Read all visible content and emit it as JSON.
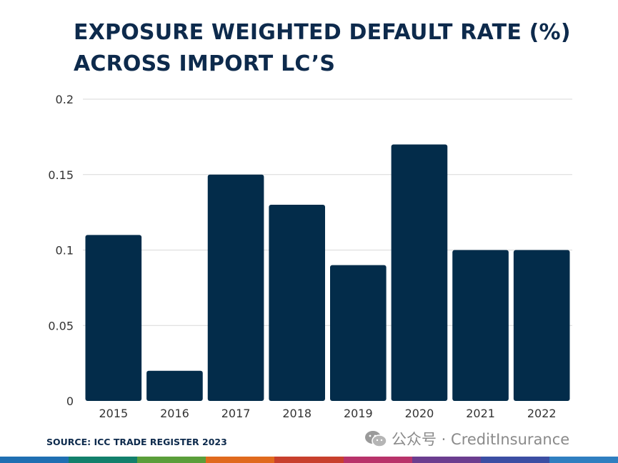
{
  "title_lines": [
    "EXPOSURE WEIGHTED DEFAULT RATE (%)",
    "ACROSS IMPORT LC’S"
  ],
  "source": "SOURCE: ICC TRADE REGISTER 2023",
  "watermark": {
    "text": "公众号 · CreditInsurance",
    "icon": "wechat-icon"
  },
  "colors": {
    "title": "#0d2a4c",
    "bar": "#032c4a",
    "grid": "#d9d9d9",
    "axis_text": "#333333",
    "stripes": [
      "#1f6fb2",
      "#12806c",
      "#5a9e3a",
      "#e06a1e",
      "#c8402d",
      "#b8336a",
      "#6b3d8f",
      "#3b4ea3",
      "#2f7fc0"
    ]
  },
  "chart_data": {
    "type": "bar",
    "title": "EXPOSURE WEIGHTED DEFAULT RATE (%) ACROSS IMPORT LC’S",
    "categories": [
      "2015",
      "2016",
      "2017",
      "2018",
      "2019",
      "2020",
      "2021",
      "2022"
    ],
    "values": [
      0.11,
      0.02,
      0.15,
      0.13,
      0.09,
      0.17,
      0.1,
      0.1
    ],
    "yticks": [
      "0",
      "0.05",
      "0.1",
      "0.15",
      "0.2"
    ],
    "ylim": [
      0,
      0.2
    ],
    "xlabel": "",
    "ylabel": "",
    "grid": true
  }
}
